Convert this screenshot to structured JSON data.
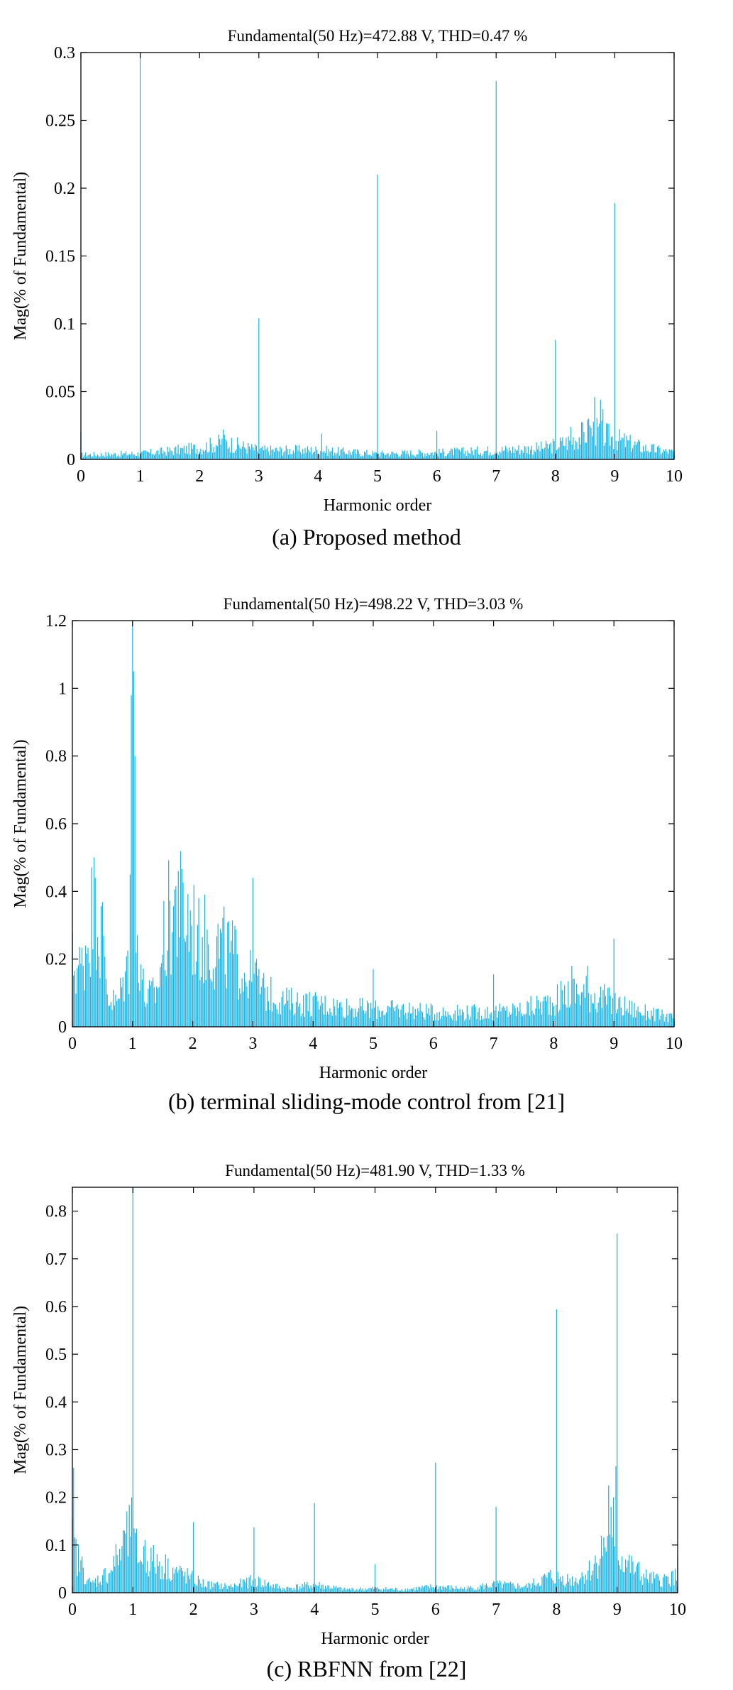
{
  "chart_data": [
    {
      "type": "bar",
      "title": "Fundamental(50 Hz)=472.88 V, THD=0.47 %",
      "caption": "(a) Proposed method",
      "xlabel": "Harmonic order",
      "ylabel": "Mag(% of Fundamental)",
      "xlim": [
        0,
        10
      ],
      "ylim": [
        0,
        0.3
      ],
      "xticks": [
        0,
        1,
        2,
        3,
        4,
        5,
        6,
        7,
        8,
        9,
        10
      ],
      "xtick_labels": [
        "0",
        "1",
        "2",
        "3",
        "4",
        "5",
        "6",
        "7",
        "8",
        "9",
        "10"
      ],
      "yticks": [
        0,
        0.05,
        0.1,
        0.15,
        0.2,
        0.25,
        0.3
      ],
      "ytick_labels": [
        "0",
        "0.05",
        "0.1",
        "0.15",
        "0.2",
        "0.25",
        "0.3"
      ],
      "color": "#1ab3e6",
      "bin_width": 0.02,
      "peaks": [
        {
          "x": 1,
          "y": 0.3
        },
        {
          "x": 3,
          "y": 0.104
        },
        {
          "x": 5,
          "y": 0.21
        },
        {
          "x": 6,
          "y": 0.021
        },
        {
          "x": 7,
          "y": 0.279
        },
        {
          "x": 8,
          "y": 0.088
        },
        {
          "x": 9,
          "y": 0.189
        }
      ],
      "floor_profile": [
        [
          0,
          0.004
        ],
        [
          1,
          0.005
        ],
        [
          2,
          0.01
        ],
        [
          2.4,
          0.015
        ],
        [
          3,
          0.008
        ],
        [
          4,
          0.008
        ],
        [
          5,
          0.005
        ],
        [
          6,
          0.006
        ],
        [
          7,
          0.008
        ],
        [
          7.8,
          0.01
        ],
        [
          8.2,
          0.015
        ],
        [
          8.6,
          0.025
        ],
        [
          9,
          0.018
        ],
        [
          9.5,
          0.01
        ],
        [
          10,
          0.006
        ]
      ],
      "bumps": [
        {
          "x": 8.65,
          "y": 0.046
        },
        {
          "x": 8.75,
          "y": 0.044
        },
        {
          "x": 8.8,
          "y": 0.037
        },
        {
          "x": 8.55,
          "y": 0.03
        },
        {
          "x": 8.25,
          "y": 0.024
        },
        {
          "x": 2.4,
          "y": 0.022
        },
        {
          "x": 4.05,
          "y": 0.019
        },
        {
          "x": 0.0,
          "y": 0.02
        }
      ]
    },
    {
      "type": "bar",
      "title": "Fundamental(50 Hz)=498.22 V, THD=3.03 %",
      "caption": "(b) terminal sliding-mode control from [21]",
      "xlabel": "Harmonic order",
      "ylabel": "Mag(% of Fundamental)",
      "xlim": [
        0,
        10
      ],
      "ylim": [
        0,
        1.2
      ],
      "xticks": [
        0,
        1,
        2,
        3,
        4,
        5,
        6,
        7,
        8,
        9,
        10
      ],
      "xtick_labels": [
        "0",
        "1",
        "2",
        "3",
        "4",
        "5",
        "6",
        "7",
        "8",
        "9",
        "10"
      ],
      "yticks": [
        0,
        0.2,
        0.4,
        0.6,
        0.8,
        1,
        1.2
      ],
      "ytick_labels": [
        "0",
        "0.2",
        "0.4",
        "0.6",
        "0.8",
        "1",
        "1.2"
      ],
      "color": "#1ab3e6",
      "bin_width": 0.02,
      "peaks": [
        {
          "x": 1,
          "y": 1.2
        },
        {
          "x": 1.02,
          "y": 1.05
        },
        {
          "x": 0.98,
          "y": 0.98
        },
        {
          "x": 1.04,
          "y": 0.8
        },
        {
          "x": 0.96,
          "y": 0.45
        },
        {
          "x": 3,
          "y": 0.44
        },
        {
          "x": 5,
          "y": 0.17
        },
        {
          "x": 7,
          "y": 0.155
        },
        {
          "x": 9,
          "y": 0.26
        }
      ],
      "floor_profile": [
        [
          0,
          0.22
        ],
        [
          0.15,
          0.2
        ],
        [
          0.3,
          0.38
        ],
        [
          0.4,
          0.42
        ],
        [
          0.5,
          0.3
        ],
        [
          0.6,
          0.1
        ],
        [
          0.75,
          0.08
        ],
        [
          0.9,
          0.2
        ],
        [
          1.1,
          0.3
        ],
        [
          1.2,
          0.1
        ],
        [
          1.4,
          0.12
        ],
        [
          1.55,
          0.34
        ],
        [
          1.7,
          0.42
        ],
        [
          1.9,
          0.38
        ],
        [
          2.2,
          0.3
        ],
        [
          2.6,
          0.26
        ],
        [
          2.9,
          0.18
        ],
        [
          3.2,
          0.12
        ],
        [
          3.5,
          0.09
        ],
        [
          4,
          0.08
        ],
        [
          4.5,
          0.07
        ],
        [
          5,
          0.06
        ],
        [
          5.5,
          0.06
        ],
        [
          6,
          0.05
        ],
        [
          6.5,
          0.05
        ],
        [
          7,
          0.05
        ],
        [
          7.5,
          0.06
        ],
        [
          8,
          0.09
        ],
        [
          8.3,
          0.12
        ],
        [
          8.6,
          0.12
        ],
        [
          9,
          0.08
        ],
        [
          9.5,
          0.05
        ],
        [
          10,
          0.03
        ]
      ],
      "bumps": [
        {
          "x": 1.75,
          "y": 0.46
        },
        {
          "x": 0.38,
          "y": 0.44
        },
        {
          "x": 2.1,
          "y": 0.38
        },
        {
          "x": 8.3,
          "y": 0.18
        },
        {
          "x": 8.55,
          "y": 0.18
        },
        {
          "x": 3.05,
          "y": 0.2
        }
      ]
    },
    {
      "type": "bar",
      "title": "Fundamental(50 Hz)=481.90 V, THD=1.33 %",
      "caption": "(c) RBFNN from [22]",
      "xlabel": "Harmonic order",
      "ylabel": "Mag(% of Fundamental)",
      "xlim": [
        0,
        10
      ],
      "ylim": [
        0,
        0.85
      ],
      "xticks": [
        0,
        1,
        2,
        3,
        4,
        5,
        6,
        7,
        8,
        9,
        10
      ],
      "xtick_labels": [
        "0",
        "1",
        "2",
        "3",
        "4",
        "5",
        "6",
        "7",
        "8",
        "9",
        "10"
      ],
      "yticks": [
        0,
        0.1,
        0.2,
        0.3,
        0.4,
        0.5,
        0.6,
        0.7,
        0.8
      ],
      "ytick_labels": [
        "0",
        "0.1",
        "0.2",
        "0.3",
        "0.4",
        "0.5",
        "0.6",
        "0.7",
        "0.8"
      ],
      "color": "#1ab3e6",
      "bin_width": 0.02,
      "peaks": [
        {
          "x": 1,
          "y": 0.85
        },
        {
          "x": 0.98,
          "y": 0.2
        },
        {
          "x": 2,
          "y": 0.148
        },
        {
          "x": 3,
          "y": 0.137
        },
        {
          "x": 4,
          "y": 0.188
        },
        {
          "x": 5,
          "y": 0.06
        },
        {
          "x": 6,
          "y": 0.273
        },
        {
          "x": 7,
          "y": 0.18
        },
        {
          "x": 8,
          "y": 0.594
        },
        {
          "x": 8.85,
          "y": 0.225
        },
        {
          "x": 9,
          "y": 0.753
        },
        {
          "x": 8.98,
          "y": 0.265
        },
        {
          "x": 0.02,
          "y": 0.262
        }
      ],
      "floor_profile": [
        [
          0,
          0.12
        ],
        [
          0.1,
          0.08
        ],
        [
          0.3,
          0.02
        ],
        [
          0.6,
          0.05
        ],
        [
          0.8,
          0.1
        ],
        [
          0.95,
          0.14
        ],
        [
          1.1,
          0.09
        ],
        [
          1.3,
          0.08
        ],
        [
          1.6,
          0.06
        ],
        [
          1.9,
          0.04
        ],
        [
          2.2,
          0.02
        ],
        [
          2.6,
          0.015
        ],
        [
          3,
          0.03
        ],
        [
          3.5,
          0.01
        ],
        [
          4,
          0.02
        ],
        [
          4.5,
          0.008
        ],
        [
          5,
          0.01
        ],
        [
          5.5,
          0.008
        ],
        [
          6,
          0.015
        ],
        [
          6.5,
          0.01
        ],
        [
          7,
          0.02
        ],
        [
          7.5,
          0.015
        ],
        [
          7.9,
          0.04
        ],
        [
          8.3,
          0.03
        ],
        [
          8.6,
          0.06
        ],
        [
          8.8,
          0.12
        ],
        [
          9.1,
          0.08
        ],
        [
          9.4,
          0.04
        ],
        [
          9.7,
          0.03
        ],
        [
          10,
          0.04
        ]
      ],
      "bumps": [
        {
          "x": 0.85,
          "y": 0.13
        },
        {
          "x": 1.2,
          "y": 0.11
        },
        {
          "x": 8.9,
          "y": 0.18
        },
        {
          "x": 8.95,
          "y": 0.2
        },
        {
          "x": 9.35,
          "y": 0.065
        },
        {
          "x": 10,
          "y": 0.075
        }
      ]
    }
  ]
}
